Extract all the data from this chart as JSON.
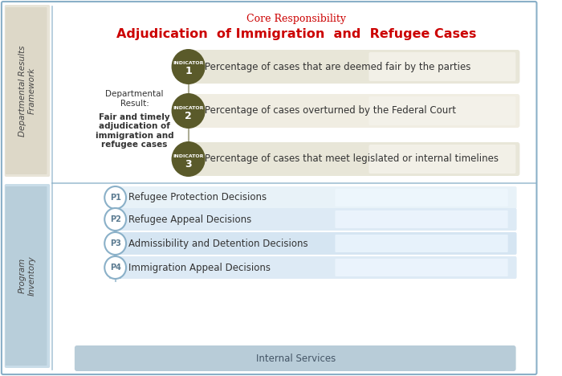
{
  "title_small": "Core Responsibility",
  "title_main": "Adjudication  of Immigration  and  Refugee Cases",
  "title_small_color": "#cc0000",
  "title_main_color": "#cc0000",
  "dept_result_label": "Departmental\nResult:",
  "dept_result_body": "Fair and timely\nadjudication of\nimmigration and\nrefugee cases",
  "indicators": [
    {
      "num": "1",
      "label": "INDICATOR\n1",
      "text": "Percentage of cases that are deemed fair by the parties"
    },
    {
      "num": "2",
      "label": "INDICATOR\n2",
      "text": "Percentage of cases overturned by the Federal Court"
    },
    {
      "num": "3",
      "label": "INDICATOR\n3",
      "text": "Percentage of cases that meet legislated or internal timelines"
    }
  ],
  "indicator_circle_color": "#5a5a2a",
  "indicator_bar_colors": [
    "#d9d9c0",
    "#e8e8d8",
    "#d9d9c0"
  ],
  "indicator_bar_light": "#f0f0e8",
  "programs": [
    {
      "id": "P1",
      "text": "Refugee Protection Decisions"
    },
    {
      "id": "P2",
      "text": "Refugee Appeal Decisions"
    },
    {
      "id": "P3",
      "text": "Admissibility and Detention Decisions"
    },
    {
      "id": "P4",
      "text": "Immigration Appeal Decisions"
    }
  ],
  "internal_services": "Internal Services",
  "program_circle_color": "#ffffff",
  "program_circle_edge": "#8ab0c8",
  "program_bar_colors": [
    "#e8f0f5",
    "#d8e8f0",
    "#d0e4ef",
    "#e0ecf5"
  ],
  "program_bar_light": "#eef5fa",
  "left_label_top": "Departmental Results\nFramework",
  "left_label_bottom": "Program\nInventory",
  "left_bg_top": "#e8e4d8",
  "left_bg_bottom": "#c8dce8",
  "outer_border_color": "#8ab0c8",
  "bg_color": "#ffffff",
  "section_divider_color": "#8ab0c8",
  "connector_color": "#8a8a6a",
  "text_color": "#333333"
}
